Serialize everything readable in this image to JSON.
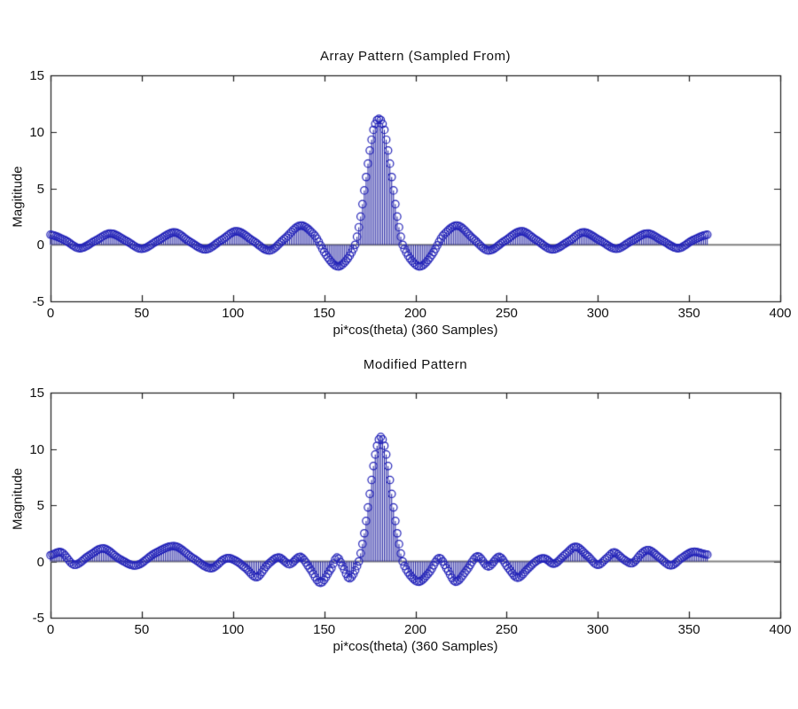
{
  "figure": {
    "background": "#ffffff",
    "colors": {
      "axis": "#1c1c1c",
      "baseline": "#808080",
      "stem": "#1a1a9e",
      "marker": "#2323b8",
      "text": "#111111"
    }
  },
  "plots": [
    {
      "title": "Array Pattern (Sampled From)",
      "ylabel": "Magititude",
      "xlabel": "pi*cos(theta) (360 Samples)",
      "xticks": [
        "0",
        "50",
        "100",
        "150",
        "200",
        "250",
        "300",
        "350",
        "400"
      ],
      "yticks": [
        "15",
        "10",
        "5",
        "0",
        "-5"
      ]
    },
    {
      "title": "Modified Pattern",
      "ylabel": "Magnitude",
      "xlabel": "pi*cos(theta) (360 Samples)",
      "xticks": [
        "0",
        "50",
        "100",
        "150",
        "200",
        "250",
        "300",
        "350",
        "400"
      ],
      "yticks": [
        "15",
        "10",
        "5",
        "0",
        "-5"
      ]
    }
  ],
  "chart_data": [
    {
      "type": "stem",
      "title": "Array Pattern (Sampled From)",
      "xlabel": "pi*cos(theta) (360 Samples)",
      "ylabel": "Magititude",
      "xlim": [
        0,
        400
      ],
      "ylim": [
        -5,
        15
      ],
      "xtick_values": [
        0,
        50,
        100,
        150,
        200,
        250,
        300,
        350,
        400
      ],
      "ytick_values": [
        15,
        10,
        5,
        0,
        -5
      ],
      "n_samples": 361,
      "sample_range": [
        0,
        360
      ],
      "peak": {
        "x": 180,
        "y": 11.15
      },
      "marker": "open-circle",
      "baseline_y": 0,
      "grid": false,
      "legend": null,
      "anchor_points": [
        [
          0,
          0.9
        ],
        [
          8,
          0.4
        ],
        [
          16,
          -0.3
        ],
        [
          25,
          0.4
        ],
        [
          33,
          1.0
        ],
        [
          42,
          0.3
        ],
        [
          50,
          -0.35
        ],
        [
          59,
          0.4
        ],
        [
          68,
          1.1
        ],
        [
          76,
          0.3
        ],
        [
          85,
          -0.4
        ],
        [
          94,
          0.45
        ],
        [
          102,
          1.2
        ],
        [
          111,
          0.35
        ],
        [
          120,
          -0.5
        ],
        [
          128,
          0.5
        ],
        [
          137,
          1.7
        ],
        [
          145,
          0.8
        ],
        [
          151,
          -0.9
        ],
        [
          157,
          -1.9
        ],
        [
          162,
          -1.4
        ],
        [
          167,
          0
        ],
        [
          170,
          2.5
        ],
        [
          173,
          6.0
        ],
        [
          176,
          9.3
        ],
        [
          178,
          10.7
        ],
        [
          180,
          11.15
        ],
        [
          182,
          10.7
        ],
        [
          184,
          9.3
        ],
        [
          187,
          6.0
        ],
        [
          190,
          2.5
        ],
        [
          193,
          0
        ],
        [
          198,
          -1.4
        ],
        [
          203,
          -1.9
        ],
        [
          209,
          -0.9
        ],
        [
          215,
          0.8
        ],
        [
          223,
          1.7
        ],
        [
          232,
          0.5
        ],
        [
          240,
          -0.5
        ],
        [
          249,
          0.35
        ],
        [
          258,
          1.2
        ],
        [
          266,
          0.45
        ],
        [
          275,
          -0.4
        ],
        [
          284,
          0.3
        ],
        [
          292,
          1.1
        ],
        [
          301,
          0.4
        ],
        [
          310,
          -0.35
        ],
        [
          318,
          0.3
        ],
        [
          327,
          1.0
        ],
        [
          335,
          0.4
        ],
        [
          344,
          -0.3
        ],
        [
          352,
          0.4
        ],
        [
          360,
          0.9
        ]
      ]
    },
    {
      "type": "stem",
      "title": "Modified Pattern",
      "xlabel": "pi*cos(theta) (360 Samples)",
      "ylabel": "Magnitude",
      "xlim": [
        0,
        400
      ],
      "ylim": [
        -5,
        15
      ],
      "xtick_values": [
        0,
        50,
        100,
        150,
        200,
        250,
        300,
        350,
        400
      ],
      "ytick_values": [
        15,
        10,
        5,
        0,
        -5
      ],
      "n_samples": 361,
      "sample_range": [
        0,
        360
      ],
      "peak": {
        "x": 181,
        "y": 11.05
      },
      "marker": "open-circle",
      "baseline_y": 0,
      "grid": false,
      "legend": null,
      "anchor_points": [
        [
          0,
          0.55
        ],
        [
          6,
          0.8
        ],
        [
          13,
          -0.3
        ],
        [
          21,
          0.5
        ],
        [
          29,
          1.15
        ],
        [
          38,
          0.2
        ],
        [
          47,
          -0.35
        ],
        [
          57,
          0.7
        ],
        [
          68,
          1.35
        ],
        [
          78,
          0.3
        ],
        [
          88,
          -0.6
        ],
        [
          96,
          0.25
        ],
        [
          101,
          0.1
        ],
        [
          107,
          -0.6
        ],
        [
          113,
          -1.4
        ],
        [
          119,
          -0.3
        ],
        [
          125,
          0.35
        ],
        [
          131,
          -0.25
        ],
        [
          137,
          0.4
        ],
        [
          142,
          -0.6
        ],
        [
          148,
          -1.9
        ],
        [
          154,
          -0.6
        ],
        [
          157,
          0.35
        ],
        [
          160,
          -0.4
        ],
        [
          164,
          -1.5
        ],
        [
          169,
          0
        ],
        [
          172,
          2.5
        ],
        [
          175,
          6.0
        ],
        [
          178,
          9.5
        ],
        [
          181,
          11.05
        ],
        [
          184,
          9.5
        ],
        [
          187,
          6.0
        ],
        [
          190,
          2.5
        ],
        [
          193,
          0
        ],
        [
          197,
          -1.2
        ],
        [
          202,
          -1.8
        ],
        [
          208,
          -0.9
        ],
        [
          213,
          0.3
        ],
        [
          217,
          -0.6
        ],
        [
          222,
          -1.8
        ],
        [
          228,
          -0.8
        ],
        [
          234,
          0.45
        ],
        [
          240,
          -0.45
        ],
        [
          246,
          0.4
        ],
        [
          251,
          -0.6
        ],
        [
          256,
          -1.45
        ],
        [
          262,
          -0.6
        ],
        [
          267,
          0.1
        ],
        [
          271,
          0.25
        ],
        [
          276,
          -0.2
        ],
        [
          282,
          0.6
        ],
        [
          288,
          1.3
        ],
        [
          295,
          0.4
        ],
        [
          300,
          -0.3
        ],
        [
          305,
          0.3
        ],
        [
          309,
          0.8
        ],
        [
          314,
          0.2
        ],
        [
          319,
          -0.15
        ],
        [
          324,
          0.7
        ],
        [
          328,
          1.0
        ],
        [
          334,
          0.3
        ],
        [
          340,
          -0.35
        ],
        [
          346,
          0.3
        ],
        [
          352,
          0.85
        ],
        [
          360,
          0.6
        ]
      ]
    }
  ]
}
